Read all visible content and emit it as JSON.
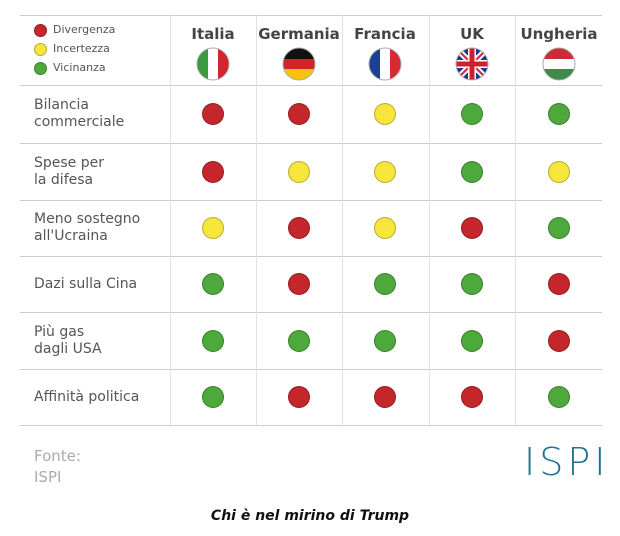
{
  "legend": [
    {
      "label": "Divergenza",
      "color": "#c4262b"
    },
    {
      "label": "Incertezza",
      "color": "#f6e53b"
    },
    {
      "label": "Vicinanza",
      "color": "#4ea93c"
    }
  ],
  "columns": [
    "Italia",
    "Germania",
    "Francia",
    "UK",
    "Ungheria"
  ],
  "rows": [
    {
      "label": "Bilancia\ncommerciale",
      "cells": [
        "#c4262b",
        "#c4262b",
        "#f6e53b",
        "#4ea93c",
        "#4ea93c"
      ]
    },
    {
      "label": "Spese per\nla difesa",
      "cells": [
        "#c4262b",
        "#f6e53b",
        "#f6e53b",
        "#4ea93c",
        "#f6e53b"
      ]
    },
    {
      "label": "Meno sostegno\nall'Ucraina",
      "cells": [
        "#f6e53b",
        "#c4262b",
        "#f6e53b",
        "#c4262b",
        "#4ea93c"
      ]
    },
    {
      "label": "Dazi sulla Cina",
      "cells": [
        "#4ea93c",
        "#c4262b",
        "#4ea93c",
        "#4ea93c",
        "#c4262b"
      ]
    },
    {
      "label": "Più gas\ndagli USA",
      "cells": [
        "#4ea93c",
        "#4ea93c",
        "#4ea93c",
        "#4ea93c",
        "#c4262b"
      ]
    },
    {
      "label": "Affinità politica",
      "cells": [
        "#4ea93c",
        "#c4262b",
        "#c4262b",
        "#c4262b",
        "#4ea93c"
      ]
    }
  ],
  "source": "Fonte:\nISPI",
  "logo": "ISPI",
  "caption": "Chi è nel mirino di Trump"
}
